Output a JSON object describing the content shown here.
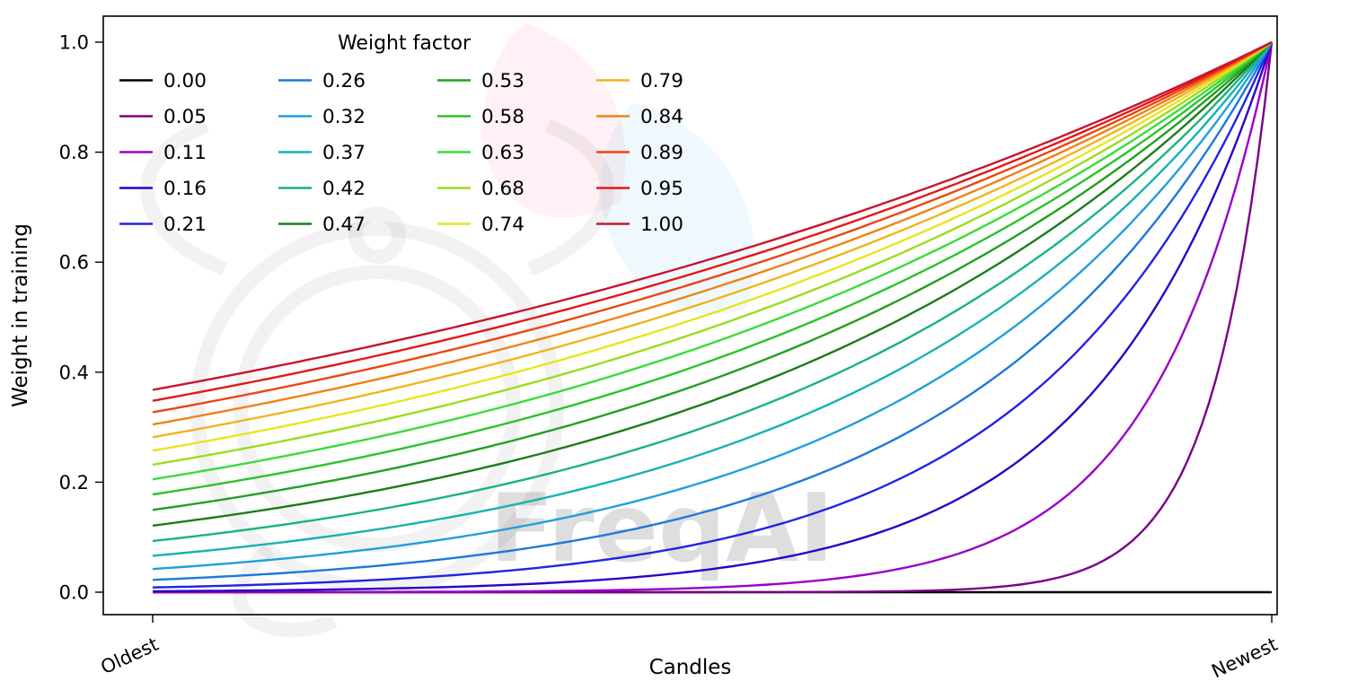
{
  "figure": {
    "background": "#ffffff",
    "watermark_text": "FreqAI"
  },
  "chart_data": {
    "type": "line",
    "title": "",
    "legend_title": "Weight factor",
    "legend_position": "upper left",
    "legend_columns": 4,
    "legend_rows": 5,
    "legend_frame": false,
    "xlabel": "Candles",
    "ylabel": "Weight in training",
    "x_tick_labels": [
      "Oldest",
      "Newest"
    ],
    "y_ticks": [
      0.0,
      0.2,
      0.4,
      0.6,
      0.8,
      1.0
    ],
    "y_tick_labels": [
      "0.0",
      "0.2",
      "0.4",
      "0.6",
      "0.8",
      "1.0"
    ],
    "ylim": [
      -0.04,
      1.05
    ],
    "x_range": [
      0,
      1
    ],
    "grid": false,
    "formula": "weight(x) = exp(-(1 - x) / factor), with x = 0 at Oldest candle and x = 1 at Newest candle; factor = 0 gives weight 0 everywhere",
    "series": [
      {
        "label": "0.00",
        "factor": 0.0,
        "color": "#000000",
        "y_oldest": 0.0,
        "y_newest": 0.0
      },
      {
        "label": "0.05",
        "factor": 0.0526,
        "color": "#7a0087",
        "y_oldest": 0.0,
        "y_newest": 1.0
      },
      {
        "label": "0.11",
        "factor": 0.1053,
        "color": "#9b00c8",
        "y_oldest": 0.0001,
        "y_newest": 1.0
      },
      {
        "label": "0.16",
        "factor": 0.1579,
        "color": "#2d00c8",
        "y_oldest": 0.0018,
        "y_newest": 1.0
      },
      {
        "label": "0.21",
        "factor": 0.2105,
        "color": "#2323e6",
        "y_oldest": 0.0087,
        "y_newest": 1.0
      },
      {
        "label": "0.26",
        "factor": 0.2632,
        "color": "#1e78dc",
        "y_oldest": 0.0224,
        "y_newest": 1.0
      },
      {
        "label": "0.32",
        "factor": 0.3158,
        "color": "#1fa0dc",
        "y_oldest": 0.0421,
        "y_newest": 1.0
      },
      {
        "label": "0.37",
        "factor": 0.3684,
        "color": "#17b2b2",
        "y_oldest": 0.0663,
        "y_newest": 1.0
      },
      {
        "label": "0.42",
        "factor": 0.4211,
        "color": "#19b37e",
        "y_oldest": 0.093,
        "y_newest": 1.0
      },
      {
        "label": "0.47",
        "factor": 0.4737,
        "color": "#1b7d1b",
        "y_oldest": 0.1211,
        "y_newest": 1.0
      },
      {
        "label": "0.53",
        "factor": 0.5263,
        "color": "#21a021",
        "y_oldest": 0.1496,
        "y_newest": 1.0
      },
      {
        "label": "0.58",
        "factor": 0.5789,
        "color": "#2bc22b",
        "y_oldest": 0.1778,
        "y_newest": 1.0
      },
      {
        "label": "0.63",
        "factor": 0.6316,
        "color": "#39dc39",
        "y_oldest": 0.2054,
        "y_newest": 1.0
      },
      {
        "label": "0.68",
        "factor": 0.6842,
        "color": "#9bdc1e",
        "y_oldest": 0.2318,
        "y_newest": 1.0
      },
      {
        "label": "0.74",
        "factor": 0.7368,
        "color": "#e6e61e",
        "y_oldest": 0.2573,
        "y_newest": 1.0
      },
      {
        "label": "0.79",
        "factor": 0.7895,
        "color": "#f0b41e",
        "y_oldest": 0.2817,
        "y_newest": 1.0
      },
      {
        "label": "0.84",
        "factor": 0.8421,
        "color": "#f08214",
        "y_oldest": 0.305,
        "y_newest": 1.0
      },
      {
        "label": "0.89",
        "factor": 0.8947,
        "color": "#ea4611",
        "y_oldest": 0.3268,
        "y_newest": 1.0
      },
      {
        "label": "0.95",
        "factor": 0.9474,
        "color": "#e61717",
        "y_oldest": 0.348,
        "y_newest": 1.0
      },
      {
        "label": "1.00",
        "factor": 1.0,
        "color": "#c81430",
        "y_oldest": 0.3679,
        "y_newest": 1.0
      }
    ]
  }
}
